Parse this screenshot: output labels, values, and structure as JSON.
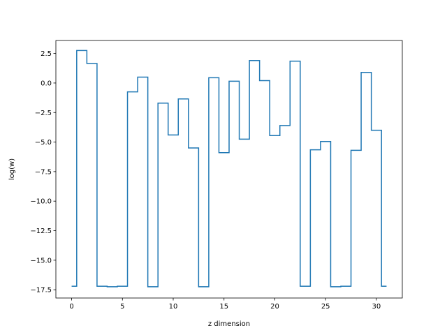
{
  "chart_data": {
    "type": "line",
    "drawstyle": "steps-mid",
    "xlabel": "z dimension",
    "ylabel": "log(w)",
    "xlim": [
      -1.55,
      32.55
    ],
    "ylim": [
      -18.2,
      3.6
    ],
    "xticks": [
      0,
      5,
      10,
      15,
      20,
      25,
      30
    ],
    "yticks": [
      2.5,
      0.0,
      -2.5,
      -5.0,
      -7.5,
      -10.0,
      -12.5,
      -15.0,
      -17.5
    ],
    "ytick_labels": [
      "2.5",
      "0.0",
      "−2.5",
      "−5.0",
      "−7.5",
      "−10.0",
      "−12.5",
      "−15.0",
      "−17.5"
    ],
    "grid": false,
    "series_color": "#1f77b4",
    "series": [
      {
        "x": [
          0,
          1,
          2,
          3,
          4,
          5,
          6,
          7,
          8,
          9,
          10,
          11,
          12,
          13,
          14,
          15,
          16,
          17,
          18,
          19,
          20,
          21,
          22,
          23,
          24,
          25,
          26,
          27,
          28,
          29,
          30,
          31
        ],
        "values": [
          -17.2,
          2.75,
          1.65,
          -17.2,
          -17.25,
          -17.2,
          -0.75,
          0.5,
          -17.25,
          -1.7,
          -4.4,
          -1.35,
          -5.5,
          -17.25,
          0.45,
          -5.9,
          0.15,
          -4.75,
          1.9,
          0.2,
          -4.45,
          -3.6,
          1.85,
          -17.2,
          -5.65,
          -4.95,
          -17.25,
          -17.2,
          -5.7,
          0.9,
          -4.0,
          -17.2
        ]
      }
    ]
  }
}
